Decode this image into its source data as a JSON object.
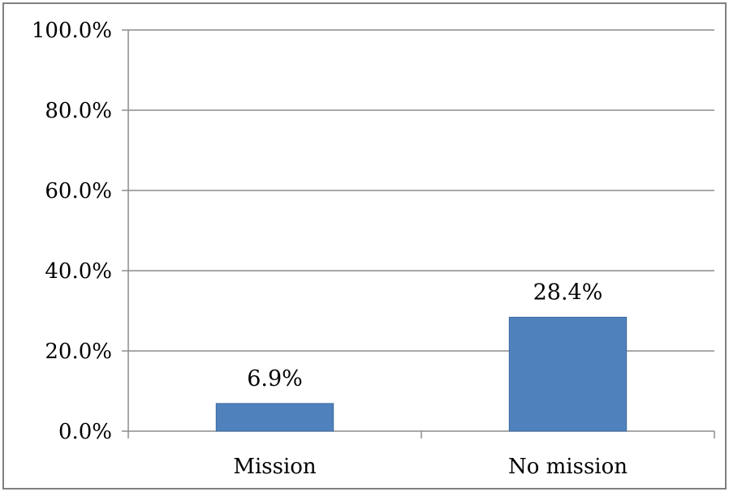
{
  "chart_data": {
    "type": "bar",
    "title": "",
    "xlabel": "",
    "ylabel": "",
    "categories": [
      "Mission",
      "No mission"
    ],
    "values": [
      6.9,
      28.4
    ],
    "data_labels": [
      "6.9%",
      "28.4%"
    ],
    "ylim": [
      0,
      100
    ],
    "yticks": [
      0,
      20,
      40,
      60,
      80,
      100
    ],
    "ytick_labels": [
      "0.0%",
      "20.0%",
      "40.0%",
      "60.0%",
      "80.0%",
      "100.0%"
    ],
    "grid": true,
    "legend": "none",
    "colors": {
      "bar": "#4F81BD",
      "bar_border": "#3C6B9E",
      "grid": "#8C8C8C",
      "axis": "#8C8C8C",
      "frame": "#808080"
    }
  }
}
